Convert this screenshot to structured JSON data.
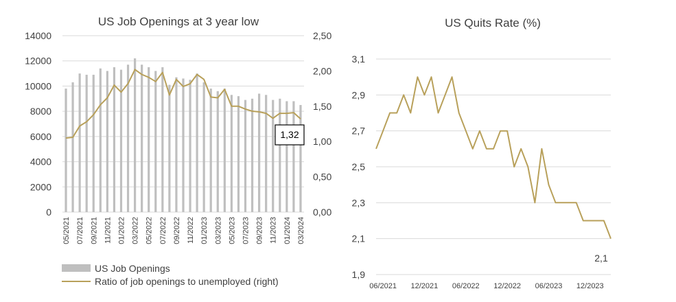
{
  "colors": {
    "bar": "#bfbfbf",
    "line": "#b8a05a",
    "grid": "#d9d9d9",
    "text": "#404040"
  },
  "chart_data": [
    {
      "type": "bar",
      "title": "US Job Openings at 3 year low",
      "categories": [
        "05/2021",
        "06/2021",
        "07/2021",
        "08/2021",
        "09/2021",
        "10/2021",
        "11/2021",
        "12/2021",
        "01/2022",
        "02/2022",
        "03/2022",
        "04/2022",
        "05/2022",
        "06/2022",
        "07/2022",
        "08/2022",
        "09/2022",
        "10/2022",
        "11/2022",
        "12/2022",
        "01/2023",
        "02/2023",
        "03/2023",
        "04/2023",
        "05/2023",
        "06/2023",
        "07/2023",
        "08/2023",
        "09/2023",
        "10/2023",
        "11/2023",
        "12/2023",
        "01/2024",
        "02/2024",
        "03/2024"
      ],
      "x_tick_labels": [
        "05/2021",
        "07/2021",
        "09/2021",
        "11/2021",
        "01/2022",
        "03/2022",
        "05/2022",
        "07/2022",
        "09/2022",
        "11/2022",
        "01/2023",
        "03/2023",
        "05/2023",
        "07/2023",
        "09/2023",
        "11/2023",
        "01/2024",
        "03/2024"
      ],
      "y_left": {
        "min": 0,
        "max": 14000,
        "ticks": [
          "0",
          "2000",
          "4000",
          "6000",
          "8000",
          "10000",
          "12000",
          "14000"
        ]
      },
      "y_right": {
        "min": 0,
        "max": 2.5,
        "ticks": [
          "0,00",
          "0,50",
          "1,00",
          "1,50",
          "2,00",
          "2,50"
        ]
      },
      "series": [
        {
          "name": "US Job Openings",
          "type": "bar",
          "axis": "left",
          "values": [
            9800,
            10300,
            11000,
            10900,
            10900,
            11400,
            11200,
            11500,
            11300,
            11700,
            12200,
            11700,
            11500,
            11200,
            11500,
            10100,
            10700,
            10600,
            10500,
            11000,
            10300,
            9800,
            9600,
            9800,
            9300,
            9200,
            8900,
            9000,
            9400,
            9300,
            8900,
            9000,
            8800,
            8800,
            8500
          ]
        },
        {
          "name": "Ratio of job openings to unemployed (right)",
          "type": "line",
          "axis": "right",
          "values": [
            1.05,
            1.06,
            1.22,
            1.28,
            1.38,
            1.52,
            1.62,
            1.8,
            1.7,
            1.82,
            2.02,
            1.95,
            1.91,
            1.85,
            1.98,
            1.66,
            1.88,
            1.78,
            1.82,
            1.95,
            1.88,
            1.63,
            1.62,
            1.74,
            1.5,
            1.5,
            1.46,
            1.43,
            1.42,
            1.4,
            1.33,
            1.4,
            1.4,
            1.41,
            1.32
          ]
        }
      ],
      "annotation": "1,32",
      "legend_position": "bottom"
    },
    {
      "type": "line",
      "title": "US Quits Rate (%)",
      "x": [
        "05/2021",
        "06/2021",
        "07/2021",
        "08/2021",
        "09/2021",
        "10/2021",
        "11/2021",
        "12/2021",
        "01/2022",
        "02/2022",
        "03/2022",
        "04/2022",
        "05/2022",
        "06/2022",
        "07/2022",
        "08/2022",
        "09/2022",
        "10/2022",
        "11/2022",
        "12/2022",
        "01/2023",
        "02/2023",
        "03/2023",
        "04/2023",
        "05/2023",
        "06/2023",
        "07/2023",
        "08/2023",
        "09/2023",
        "10/2023",
        "11/2023",
        "12/2023",
        "01/2024",
        "02/2024",
        "03/2024"
      ],
      "x_tick_labels": [
        "06/2021",
        "12/2021",
        "06/2022",
        "12/2022",
        "06/2023",
        "12/2023"
      ],
      "y": {
        "min": 1.9,
        "max": 3.1,
        "ticks": [
          "1,9",
          "2,1",
          "2,3",
          "2,5",
          "2,7",
          "2,9",
          "3,1"
        ]
      },
      "series": [
        {
          "values": [
            2.6,
            2.7,
            2.8,
            2.8,
            2.9,
            2.8,
            3.0,
            2.9,
            3.0,
            2.8,
            2.9,
            3.0,
            2.8,
            2.7,
            2.6,
            2.7,
            2.6,
            2.6,
            2.7,
            2.7,
            2.5,
            2.6,
            2.5,
            2.3,
            2.6,
            2.4,
            2.3,
            2.3,
            2.3,
            2.3,
            2.2,
            2.2,
            2.2,
            2.2,
            2.1
          ]
        }
      ],
      "annotation": "2,1"
    }
  ]
}
